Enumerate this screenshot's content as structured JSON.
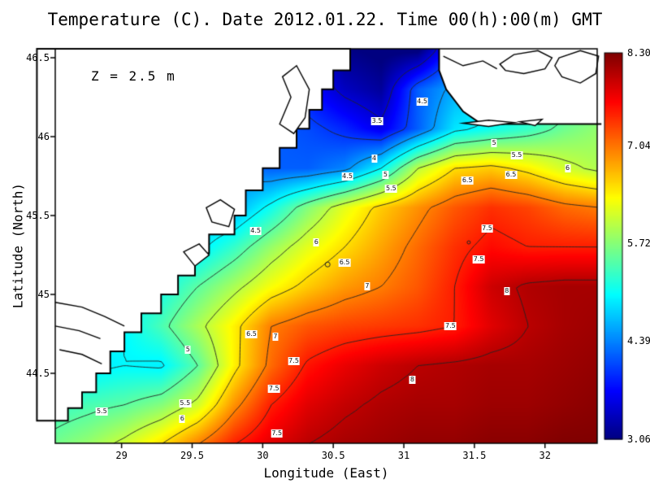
{
  "title": "Temperature (C). Date 2012.01.22. Time 00(h):00(m) GMT",
  "annotation": "Z = 2.5 m",
  "axes": {
    "xlabel": "Longitude (East)",
    "ylabel": "Latitude (North)",
    "x_tick_values": [
      29,
      29.5,
      30,
      30.5,
      31,
      31.5,
      32
    ],
    "x_tick_labels": [
      "29",
      "29.5",
      "30",
      "30.5",
      "31",
      "31.5",
      "32"
    ],
    "y_tick_values": [
      46.5,
      46,
      45.5,
      45,
      44.5
    ],
    "y_tick_labels": [
      "46.5",
      "46",
      "45.5",
      "45",
      "44.5"
    ],
    "lon_range": [
      28.53,
      32.37
    ],
    "lat_range": [
      44.057,
      46.557
    ]
  },
  "colorbar": {
    "min": 3.06,
    "max": 8.3,
    "tick_values": [
      8.3,
      7.04,
      5.72,
      4.39,
      3.06
    ],
    "tick_labels": [
      "8.30",
      "7.04",
      "5.72",
      "4.39",
      "3.06"
    ]
  },
  "colors": {
    "land": "#ffffff",
    "coast": "#000000",
    "contour": "#222222"
  },
  "chart_data": {
    "type": "heatmap",
    "title": "Temperature (C). Date 2012.01.22. Time 00(h):00(m) GMT",
    "xlabel": "Longitude (East)",
    "ylabel": "Latitude (North)",
    "colormap": "jet",
    "value_range": [
      3.06,
      8.3
    ],
    "x": [
      28.5,
      28.76,
      29.02,
      29.28,
      29.54,
      29.8,
      30.06,
      30.32,
      30.58,
      30.84,
      31.1,
      31.36,
      31.62,
      31.88,
      32.14,
      32.4
    ],
    "y": [
      46.55,
      46.3,
      46.05,
      45.8,
      45.55,
      45.3,
      45.05,
      44.8,
      44.55,
      44.3,
      44.05
    ],
    "values": [
      [
        4.4,
        4.4,
        4.3,
        4.3,
        4.2,
        4.1,
        3.9,
        3.6,
        3.1,
        3.0,
        3.0,
        4.0,
        4.6,
        4.9,
        5.1,
        5.3
      ],
      [
        4.5,
        4.5,
        4.4,
        4.4,
        4.3,
        4.2,
        4.0,
        3.8,
        3.4,
        3.2,
        4.2,
        4.6,
        4.8,
        5.0,
        5.2,
        5.4
      ],
      [
        4.6,
        4.6,
        4.5,
        4.5,
        4.4,
        4.3,
        4.2,
        4.1,
        3.9,
        3.6,
        4.2,
        4.9,
        5.1,
        5.3,
        5.6,
        5.8
      ],
      [
        4.8,
        4.8,
        4.7,
        4.6,
        4.5,
        4.4,
        4.2,
        4.2,
        4.4,
        5.0,
        6.0,
        6.5,
        6.6,
        6.4,
        6.1,
        5.9
      ],
      [
        5.0,
        5.0,
        4.9,
        4.8,
        4.6,
        4.6,
        5.1,
        5.7,
        6.2,
        6.6,
        6.9,
        7.2,
        7.4,
        7.3,
        7.1,
        7.0
      ],
      [
        5.2,
        5.2,
        5.1,
        5.0,
        4.9,
        5.3,
        5.8,
        6.2,
        6.5,
        6.8,
        7.1,
        7.4,
        7.6,
        7.5,
        7.5,
        7.5
      ],
      [
        5.4,
        5.3,
        5.2,
        5.1,
        5.5,
        5.9,
        6.3,
        6.6,
        6.85,
        7.0,
        7.2,
        7.5,
        7.9,
        8.05,
        8.1,
        8.1
      ],
      [
        5.2,
        5.1,
        5.0,
        5.4,
        5.9,
        6.4,
        7.0,
        7.2,
        7.3,
        7.35,
        7.4,
        7.5,
        7.8,
        8.0,
        8.1,
        8.15
      ],
      [
        5.0,
        4.9,
        5.0,
        4.95,
        5.5,
        6.4,
        7.1,
        7.55,
        7.75,
        7.9,
        8.0,
        8.05,
        8.1,
        8.1,
        8.15,
        8.2
      ],
      [
        5.3,
        5.4,
        5.5,
        5.7,
        6.1,
        6.9,
        7.5,
        7.8,
        7.95,
        8.05,
        8.1,
        8.1,
        8.15,
        8.15,
        8.2,
        8.25
      ],
      [
        5.6,
        5.8,
        6.1,
        6.5,
        7.0,
        7.5,
        7.8,
        8.0,
        8.1,
        8.15,
        8.2,
        8.2,
        8.25,
        8.25,
        8.3,
        8.3
      ]
    ],
    "contour_levels": [
      3.5,
      4,
      4.5,
      5,
      5.5,
      6,
      6.5,
      7,
      7.5,
      8
    ],
    "contour_labels": [
      {
        "v": "4.5",
        "lon": 31.13,
        "lat": 46.22
      },
      {
        "v": "3.5",
        "lon": 30.81,
        "lat": 46.1
      },
      {
        "v": "4",
        "lon": 30.79,
        "lat": 45.86
      },
      {
        "v": "5",
        "lon": 31.64,
        "lat": 45.96
      },
      {
        "v": "5.5",
        "lon": 31.8,
        "lat": 45.88
      },
      {
        "v": "6",
        "lon": 32.16,
        "lat": 45.8
      },
      {
        "v": "6.5",
        "lon": 31.76,
        "lat": 45.76
      },
      {
        "v": "4.5",
        "lon": 30.6,
        "lat": 45.75
      },
      {
        "v": "5",
        "lon": 30.87,
        "lat": 45.76
      },
      {
        "v": "5.5",
        "lon": 30.91,
        "lat": 45.67
      },
      {
        "v": "6.5",
        "lon": 31.45,
        "lat": 45.72
      },
      {
        "v": "4.5",
        "lon": 29.95,
        "lat": 45.4
      },
      {
        "v": "6",
        "lon": 30.38,
        "lat": 45.33
      },
      {
        "v": "7.5",
        "lon": 31.59,
        "lat": 45.42
      },
      {
        "v": "6.5",
        "lon": 30.58,
        "lat": 45.2
      },
      {
        "v": "7.5",
        "lon": 31.53,
        "lat": 45.22
      },
      {
        "v": "7",
        "lon": 30.74,
        "lat": 45.05
      },
      {
        "v": "8",
        "lon": 31.73,
        "lat": 45.02
      },
      {
        "v": "6.5",
        "lon": 29.92,
        "lat": 44.75
      },
      {
        "v": "7",
        "lon": 30.09,
        "lat": 44.73
      },
      {
        "v": "7.5",
        "lon": 31.33,
        "lat": 44.8
      },
      {
        "v": "5",
        "lon": 29.47,
        "lat": 44.65
      },
      {
        "v": "7.5",
        "lon": 30.22,
        "lat": 44.58
      },
      {
        "v": "7.5",
        "lon": 30.08,
        "lat": 44.4
      },
      {
        "v": "8",
        "lon": 31.06,
        "lat": 44.46
      },
      {
        "v": "5.5",
        "lon": 28.86,
        "lat": 44.26
      },
      {
        "v": "5.5",
        "lon": 29.45,
        "lat": 44.31
      },
      {
        "v": "6",
        "lon": 29.43,
        "lat": 44.21
      },
      {
        "v": "7.5",
        "lon": 30.1,
        "lat": 44.12
      }
    ],
    "small_rings": [
      {
        "lon": 30.46,
        "lat": 45.19,
        "r": 3
      },
      {
        "lon": 31.46,
        "lat": 45.33,
        "r": 2
      }
    ],
    "land_polygon": [
      [
        28.4,
        46.557
      ],
      [
        30.62,
        46.557
      ],
      [
        30.62,
        46.42
      ],
      [
        30.5,
        46.42
      ],
      [
        30.5,
        46.3
      ],
      [
        30.42,
        46.3
      ],
      [
        30.42,
        46.17
      ],
      [
        30.33,
        46.17
      ],
      [
        30.33,
        46.05
      ],
      [
        30.24,
        46.05
      ],
      [
        30.24,
        45.93
      ],
      [
        30.12,
        45.93
      ],
      [
        30.12,
        45.8
      ],
      [
        30.0,
        45.8
      ],
      [
        30.0,
        45.66
      ],
      [
        29.88,
        45.66
      ],
      [
        29.88,
        45.5
      ],
      [
        29.8,
        45.5
      ],
      [
        29.8,
        45.38
      ],
      [
        29.62,
        45.38
      ],
      [
        29.62,
        45.26
      ],
      [
        29.52,
        45.26
      ],
      [
        29.52,
        45.12
      ],
      [
        29.4,
        45.12
      ],
      [
        29.4,
        45.0
      ],
      [
        29.28,
        45.0
      ],
      [
        29.28,
        44.88
      ],
      [
        29.14,
        44.88
      ],
      [
        29.14,
        44.76
      ],
      [
        29.02,
        44.76
      ],
      [
        29.02,
        44.64
      ],
      [
        28.92,
        44.64
      ],
      [
        28.92,
        44.5
      ],
      [
        28.82,
        44.5
      ],
      [
        28.82,
        44.38
      ],
      [
        28.72,
        44.38
      ],
      [
        28.72,
        44.28
      ],
      [
        28.62,
        44.28
      ],
      [
        28.62,
        44.2
      ],
      [
        28.4,
        44.2
      ]
    ],
    "nodata_polygon": [
      [
        31.25,
        46.557
      ],
      [
        32.4,
        46.557
      ],
      [
        32.4,
        46.08
      ],
      [
        31.55,
        46.08
      ],
      [
        31.42,
        46.16
      ],
      [
        31.3,
        46.3
      ],
      [
        31.25,
        46.42
      ]
    ],
    "nodata_coast_line": [
      [
        31.25,
        46.557
      ],
      [
        31.25,
        46.42
      ],
      [
        31.3,
        46.3
      ],
      [
        31.42,
        46.16
      ],
      [
        31.55,
        46.08
      ],
      [
        32.4,
        46.08
      ]
    ],
    "coast_details": [
      {
        "type": "polyline",
        "pts": [
          [
            28.53,
            44.95
          ],
          [
            28.72,
            44.92
          ],
          [
            28.88,
            44.86
          ],
          [
            29.02,
            44.8
          ]
        ]
      },
      {
        "type": "polyline",
        "pts": [
          [
            28.53,
            44.8
          ],
          [
            28.7,
            44.77
          ],
          [
            28.85,
            44.72
          ]
        ]
      },
      {
        "type": "polyline",
        "pts": [
          [
            28.56,
            44.65
          ],
          [
            28.72,
            44.62
          ],
          [
            28.86,
            44.56
          ]
        ]
      },
      {
        "type": "polygon",
        "pts": [
          [
            29.6,
            45.55
          ],
          [
            29.7,
            45.6
          ],
          [
            29.8,
            45.54
          ],
          [
            29.76,
            45.43
          ],
          [
            29.64,
            45.46
          ]
        ]
      },
      {
        "type": "polygon",
        "pts": [
          [
            29.44,
            45.27
          ],
          [
            29.55,
            45.32
          ],
          [
            29.62,
            45.25
          ],
          [
            29.52,
            45.18
          ]
        ]
      },
      {
        "type": "polygon",
        "pts": [
          [
            30.12,
            46.08
          ],
          [
            30.2,
            46.25
          ],
          [
            30.14,
            46.38
          ],
          [
            30.24,
            46.45
          ],
          [
            30.33,
            46.3
          ],
          [
            30.3,
            46.12
          ],
          [
            30.22,
            46.02
          ]
        ]
      },
      {
        "type": "polygon",
        "pts": [
          [
            31.68,
            46.46
          ],
          [
            31.78,
            46.52
          ],
          [
            31.95,
            46.545
          ],
          [
            32.05,
            46.5
          ],
          [
            32.0,
            46.43
          ],
          [
            31.85,
            46.4
          ],
          [
            31.72,
            46.42
          ]
        ]
      },
      {
        "type": "polygon",
        "pts": [
          [
            32.1,
            46.5
          ],
          [
            32.25,
            46.545
          ],
          [
            32.38,
            46.51
          ],
          [
            32.36,
            46.4
          ],
          [
            32.25,
            46.34
          ],
          [
            32.12,
            46.38
          ],
          [
            32.07,
            46.45
          ]
        ]
      },
      {
        "type": "polyline",
        "pts": [
          [
            31.28,
            46.51
          ],
          [
            31.42,
            46.45
          ],
          [
            31.56,
            46.48
          ],
          [
            31.66,
            46.43
          ]
        ]
      },
      {
        "type": "polygon",
        "pts": [
          [
            31.42,
            46.085
          ],
          [
            31.6,
            46.105
          ],
          [
            31.78,
            46.09
          ],
          [
            31.6,
            46.065
          ]
        ]
      },
      {
        "type": "polygon",
        "pts": [
          [
            31.82,
            46.095
          ],
          [
            31.98,
            46.11
          ],
          [
            31.93,
            46.07
          ]
        ]
      }
    ]
  }
}
